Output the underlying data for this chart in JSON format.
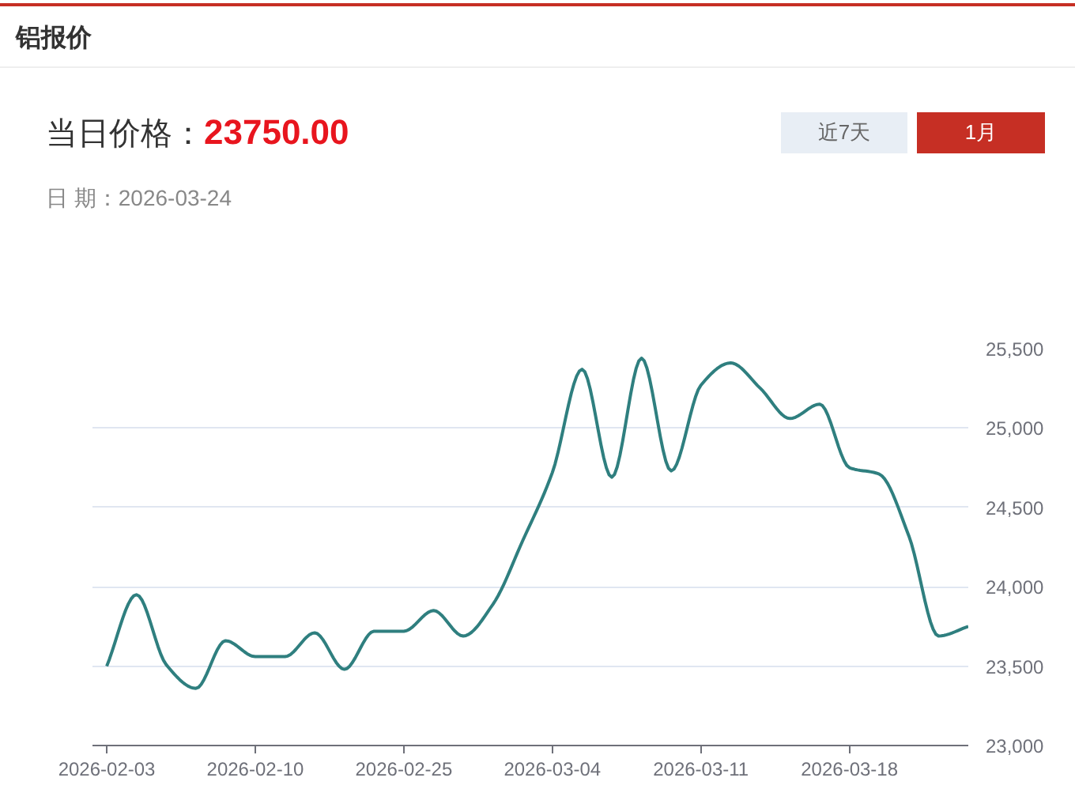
{
  "chart_data": {
    "type": "line",
    "title": "铝报价",
    "annotations": [
      "当日价格：",
      "23750.00",
      "日 期：2026-03-24",
      "近7天",
      "1月"
    ],
    "categories": [
      "2026-02-03",
      null,
      null,
      null,
      null,
      "2026-02-10",
      null,
      null,
      null,
      null,
      "2026-02-25",
      null,
      null,
      null,
      null,
      "2026-03-04",
      null,
      null,
      null,
      null,
      "2026-03-11",
      null,
      null,
      null,
      null,
      "2026-03-18",
      null,
      null,
      null,
      null
    ],
    "series": [
      {
        "color": "#2f7f7f",
        "values": [
          23500,
          23950,
          23510,
          23360,
          23660,
          23560,
          23560,
          23710,
          23480,
          23720,
          23720,
          23850,
          23690,
          23890,
          24290,
          24720,
          25370,
          24690,
          25440,
          24730,
          25270,
          25410,
          25250,
          25060,
          25150,
          24750,
          24710,
          24320,
          23690,
          23750
        ]
      }
    ],
    "ylim": [
      23000,
      25500
    ],
    "yticks": [
      {
        "value": 23000,
        "label": "23,000"
      },
      {
        "value": 23500,
        "label": "23,500"
      },
      {
        "value": 24000,
        "label": "24,000"
      },
      {
        "value": 24500,
        "label": "24,500"
      },
      {
        "value": 25000,
        "label": "25,000"
      },
      {
        "value": 25500,
        "label": "25,500"
      }
    ],
    "grid": "y"
  }
}
